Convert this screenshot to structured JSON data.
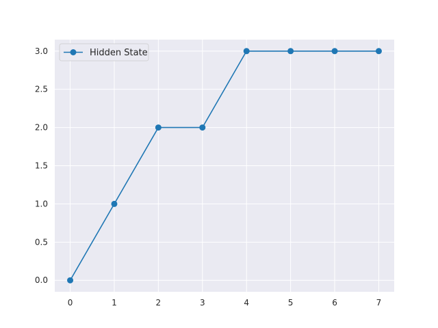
{
  "chart_data": {
    "type": "line",
    "x": [
      0,
      1,
      2,
      3,
      4,
      5,
      6,
      7
    ],
    "series": [
      {
        "name": "Hidden State",
        "values": [
          0,
          1,
          2,
          2,
          3,
          3,
          3,
          3
        ],
        "color": "#1f77b4",
        "marker": "circle"
      }
    ],
    "xticks": [
      "0",
      "1",
      "2",
      "3",
      "4",
      "5",
      "6",
      "7"
    ],
    "yticks": [
      "0.0",
      "0.5",
      "1.0",
      "1.5",
      "2.0",
      "2.5",
      "3.0"
    ],
    "xlim": [
      -0.35,
      7.35
    ],
    "ylim": [
      -0.15,
      3.15
    ],
    "grid": true,
    "legend": "upper-left",
    "background": "#eaeaf2",
    "grid_color": "#ffffff"
  }
}
